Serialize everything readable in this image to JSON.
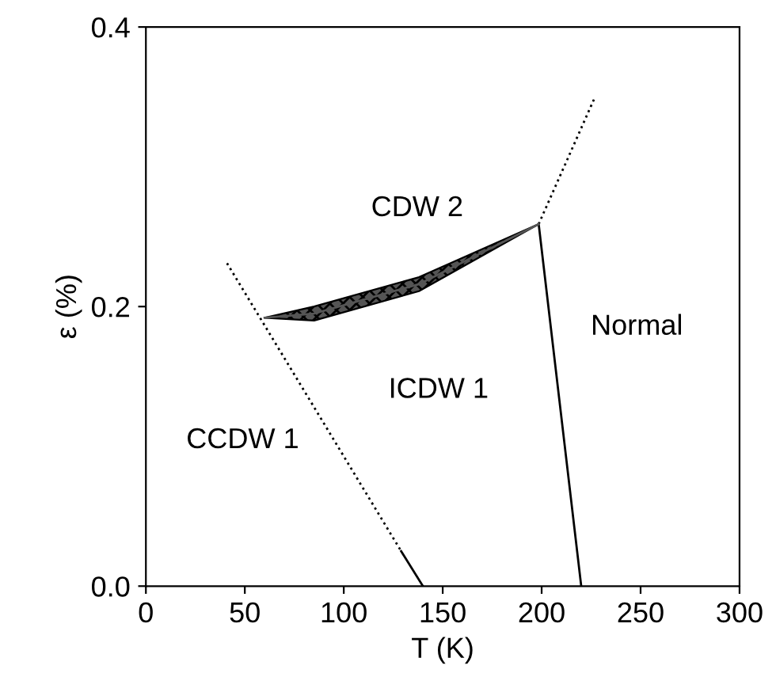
{
  "chart_data": {
    "type": "line",
    "xlabel": "T (K)",
    "ylabel": "ε (%)",
    "xlim": [
      0,
      300
    ],
    "ylim": [
      0,
      0.4
    ],
    "xticks": [
      0,
      50,
      100,
      150,
      200,
      250,
      300
    ],
    "yticks": [
      {
        "value": 0,
        "label": "0.0"
      },
      {
        "value": 0.2,
        "label": "0.2"
      },
      {
        "value": 0.4,
        "label": "0.4"
      }
    ],
    "grid": false,
    "legend": false,
    "marker": "none",
    "series": [
      {
        "color": "#000000",
        "line_style": "solid",
        "x": [
          198.5,
          220
        ],
        "values": [
          0.259,
          0
        ]
      },
      {
        "color": "#000000",
        "line_style": "dotted",
        "x": [
          198.5,
          227
        ],
        "values": [
          0.259,
          0.35
        ]
      },
      {
        "color": "#000000",
        "line_style": "dotted",
        "x": [
          41,
          129
        ],
        "values": [
          0.231,
          0.025
        ]
      },
      {
        "color": "#000000",
        "line_style": "solid",
        "x": [
          129,
          140
        ],
        "values": [
          0.025,
          0
        ]
      },
      {
        "color": "#555555",
        "line_style": "solid",
        "x": [
          60,
          85,
          138,
          198.5
        ],
        "values": [
          0.192,
          0.195,
          0.216,
          0.259
        ],
        "lower": [
          0.192,
          0.19,
          0.211,
          0.259
        ],
        "upper": [
          0.192,
          0.2,
          0.221,
          0.259
        ]
      }
    ],
    "annotations": [
      "CDW 2",
      "Normal",
      "ICDW 1",
      "CCDW 1"
    ]
  }
}
